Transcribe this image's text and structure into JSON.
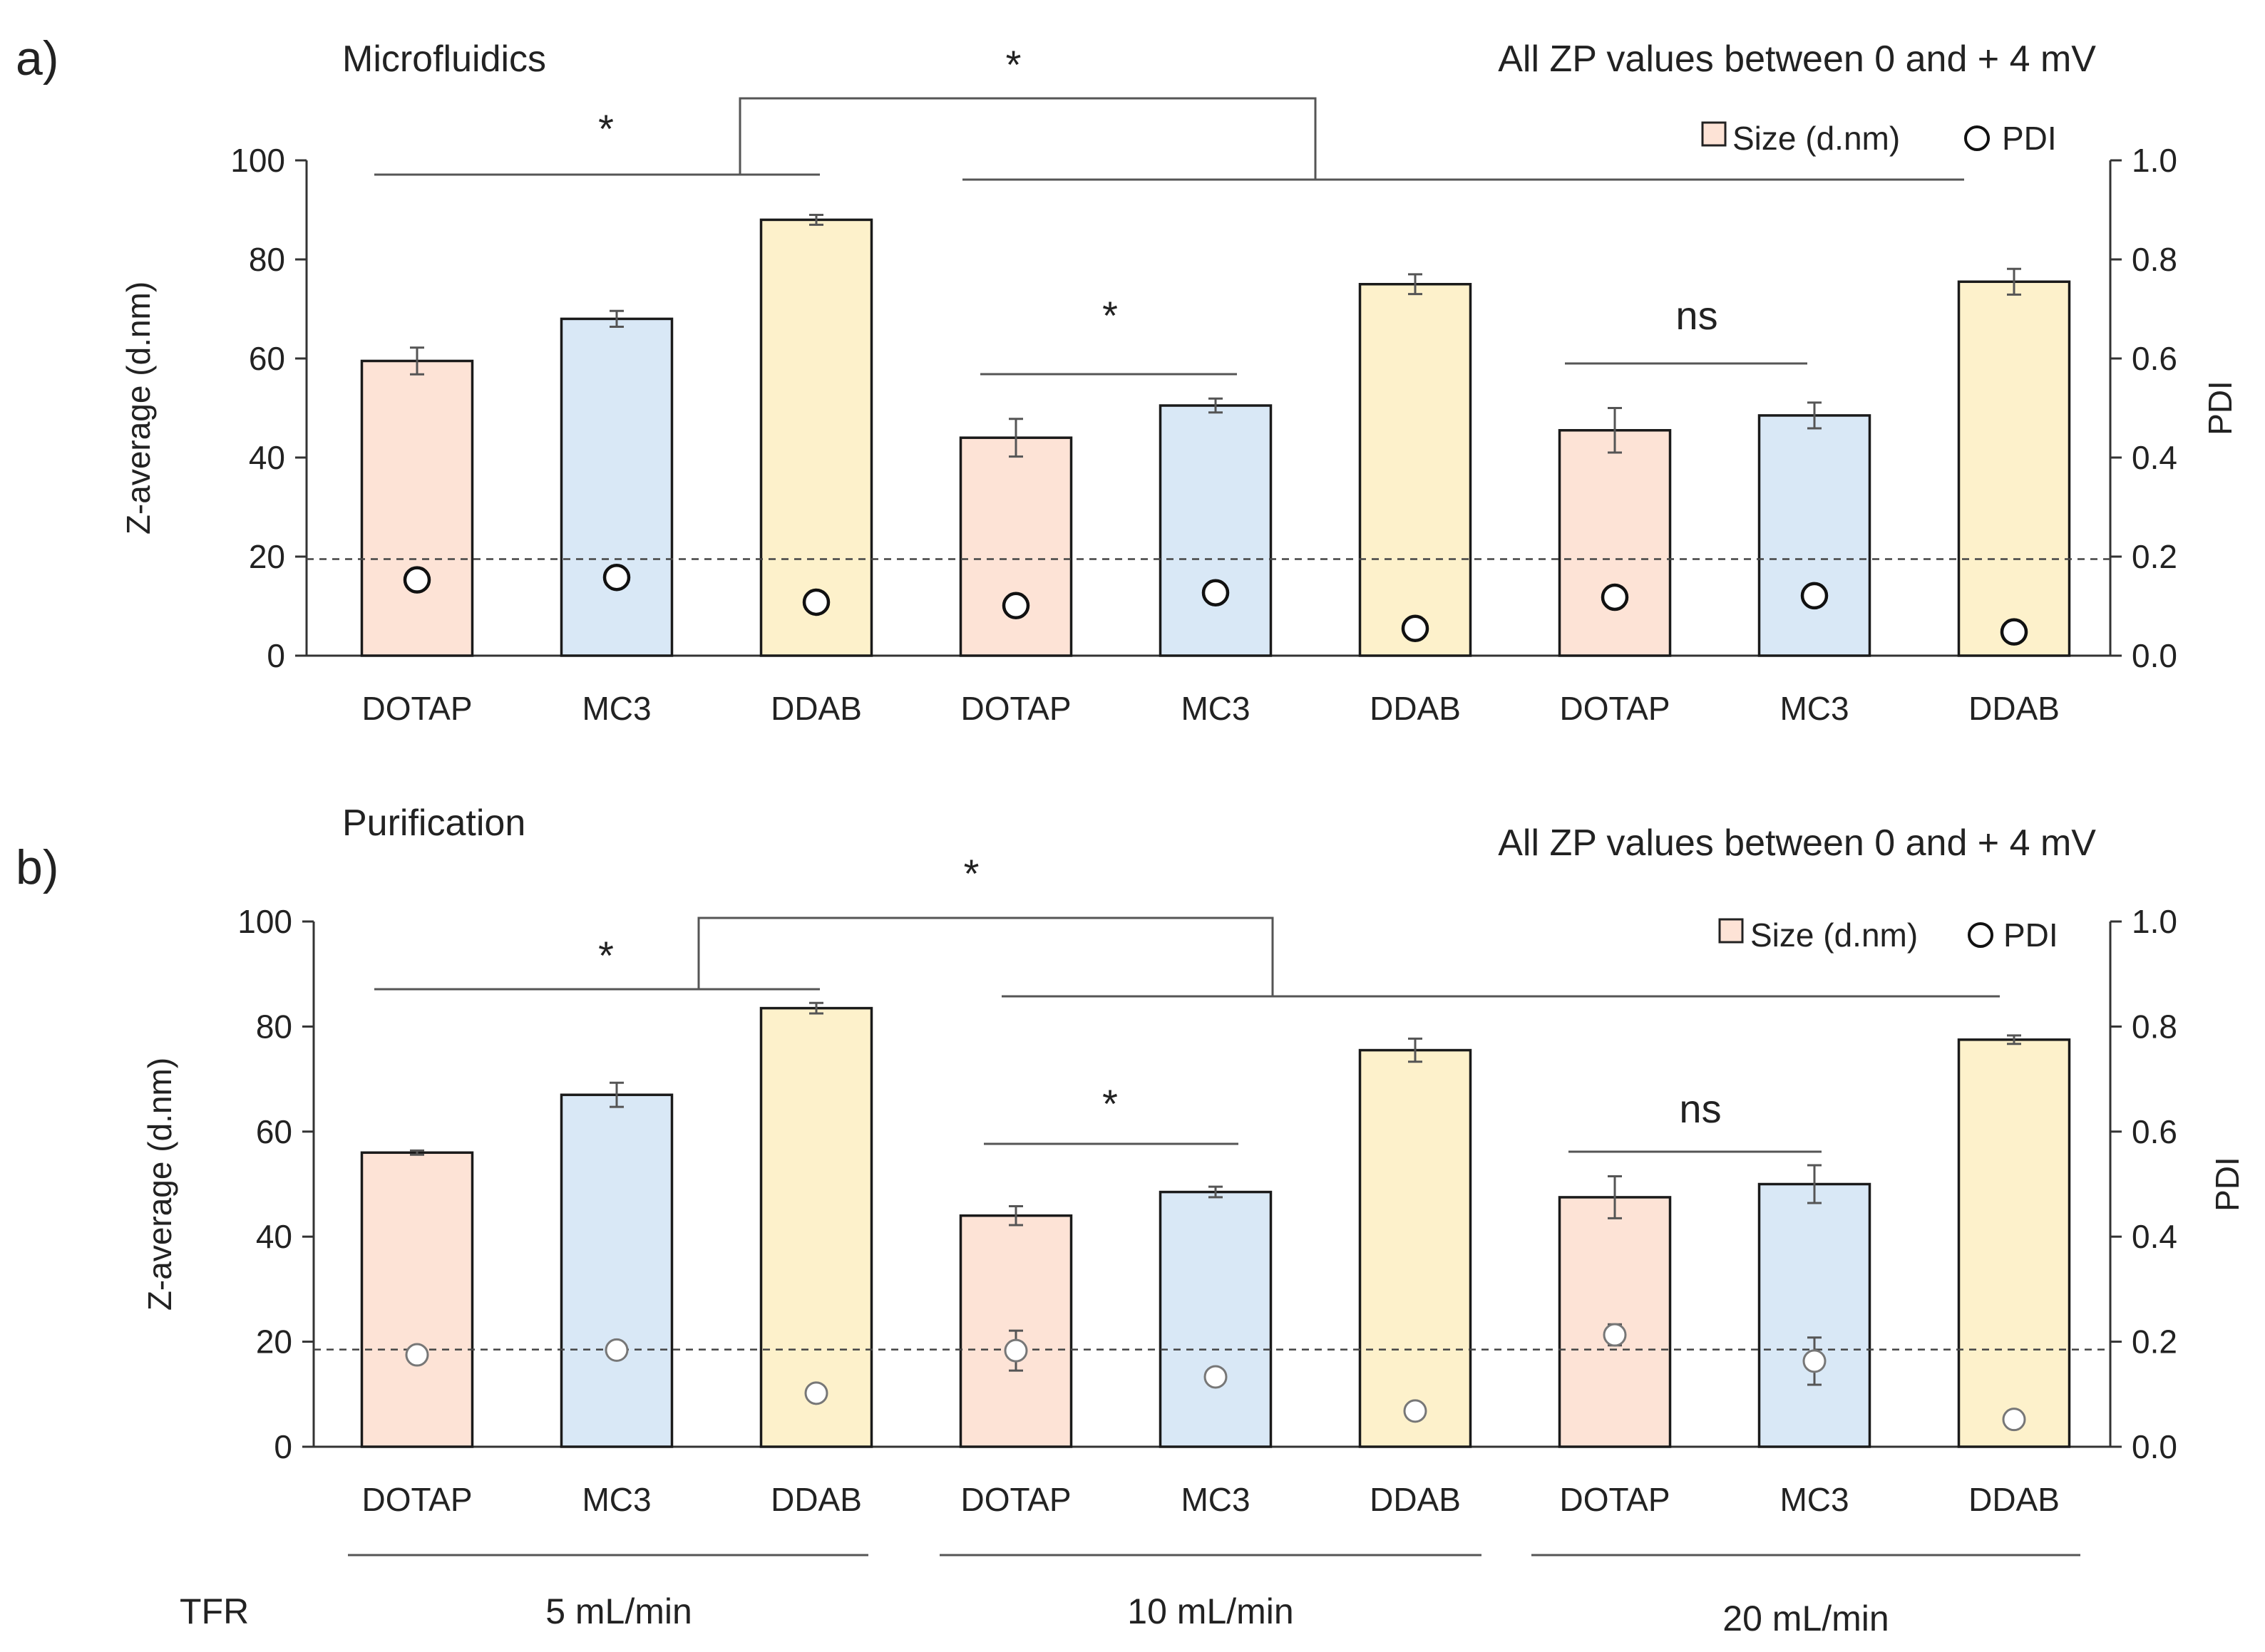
{
  "colors": {
    "DOTAP": {
      "fill": "#fde3d6",
      "stroke": "#1a1a1a"
    },
    "MC3": {
      "fill": "#d9e8f6",
      "stroke": "#1a1a1a"
    },
    "DDAB": {
      "fill": "#fdf1cb",
      "stroke": "#1a1a1a"
    },
    "pdi_marker": "#ffffff",
    "axis": "#333333",
    "bracket": "#555555",
    "dashed": "#444444"
  },
  "chart_data": [
    {
      "type": "bar",
      "panel_label": "a)",
      "title": "Microfluidics",
      "note": "All ZP values between 0 and + 4 mV",
      "ylabel": "Z-average (d.nm)",
      "y2label": "PDI",
      "ylim": [
        0,
        100
      ],
      "y2lim": [
        0,
        1.0
      ],
      "yticks": [
        "0",
        "20",
        "40",
        "60",
        "80",
        "100"
      ],
      "y2ticks": [
        "0.0",
        "0.2",
        "0.4",
        "0.6",
        "0.8",
        "1.0"
      ],
      "categories": [
        "DOTAP",
        "MC3",
        "DDAB",
        "DOTAP",
        "MC3",
        "DDAB",
        "DOTAP",
        "MC3",
        "DDAB"
      ],
      "lipids": [
        "DOTAP",
        "MC3",
        "DDAB",
        "DOTAP",
        "MC3",
        "DDAB",
        "DOTAP",
        "MC3",
        "DDAB"
      ],
      "series": [
        {
          "name": "Size (d.nm)",
          "values": [
            59.5,
            68,
            88,
            44,
            50.5,
            75,
            45.5,
            48.5,
            75.5
          ],
          "errors": [
            2.7,
            1.6,
            1.0,
            3.8,
            1.4,
            2.0,
            4.5,
            2.6,
            2.6
          ]
        },
        {
          "name": "PDI",
          "values": [
            0.153,
            0.158,
            0.108,
            0.101,
            0.127,
            0.055,
            0.118,
            0.121,
            0.048
          ],
          "errors": [
            0,
            0,
            0.008,
            0,
            0,
            0,
            0,
            0,
            0
          ]
        }
      ],
      "dashed_line_y": 19.5,
      "brackets": [
        {
          "from": 0,
          "to": 2,
          "label": "*"
        },
        {
          "from": 3,
          "to": 4,
          "label": "*"
        },
        {
          "from": 6,
          "to": 7,
          "label": "ns"
        }
      ],
      "group_bracket_label": "*"
    },
    {
      "type": "bar",
      "panel_label": "b)",
      "title": "Purification",
      "note": "All ZP values between 0 and + 4 mV",
      "ylabel": "Z-average (d.nm)",
      "y2label": "PDI",
      "ylim": [
        0,
        100
      ],
      "y2lim": [
        0,
        1.0
      ],
      "yticks": [
        "0",
        "20",
        "40",
        "60",
        "80",
        "100"
      ],
      "y2ticks": [
        "0.0",
        "0.2",
        "0.4",
        "0.6",
        "0.8",
        "1.0"
      ],
      "categories": [
        "DOTAP",
        "MC3",
        "DDAB",
        "DOTAP",
        "MC3",
        "DDAB",
        "DOTAP",
        "MC3",
        "DDAB"
      ],
      "lipids": [
        "DOTAP",
        "MC3",
        "DDAB",
        "DOTAP",
        "MC3",
        "DDAB",
        "DOTAP",
        "MC3",
        "DDAB"
      ],
      "series": [
        {
          "name": "Size (d.nm)",
          "values": [
            56,
            67,
            83.5,
            44,
            48.5,
            75.5,
            47.5,
            50,
            77.5
          ],
          "errors": [
            0.4,
            2.3,
            1.0,
            1.8,
            1.0,
            2.2,
            4.0,
            3.6,
            0.8
          ]
        },
        {
          "name": "PDI",
          "values": [
            0.175,
            0.184,
            0.102,
            0.183,
            0.133,
            0.068,
            0.213,
            0.163,
            0.052
          ],
          "errors": [
            0,
            0,
            0,
            0.038,
            0,
            0,
            0.02,
            0.045,
            0
          ]
        }
      ],
      "dashed_line_y": 18.5,
      "brackets": [
        {
          "from": 0,
          "to": 2,
          "label": "*"
        },
        {
          "from": 3,
          "to": 4,
          "label": "*"
        },
        {
          "from": 6,
          "to": 7,
          "label": "ns"
        }
      ],
      "group_bracket_label": "*"
    }
  ],
  "footer": {
    "tfr_label": "TFR",
    "groups": [
      "5 mL/min",
      "10 mL/min",
      "20 mL/min"
    ]
  }
}
